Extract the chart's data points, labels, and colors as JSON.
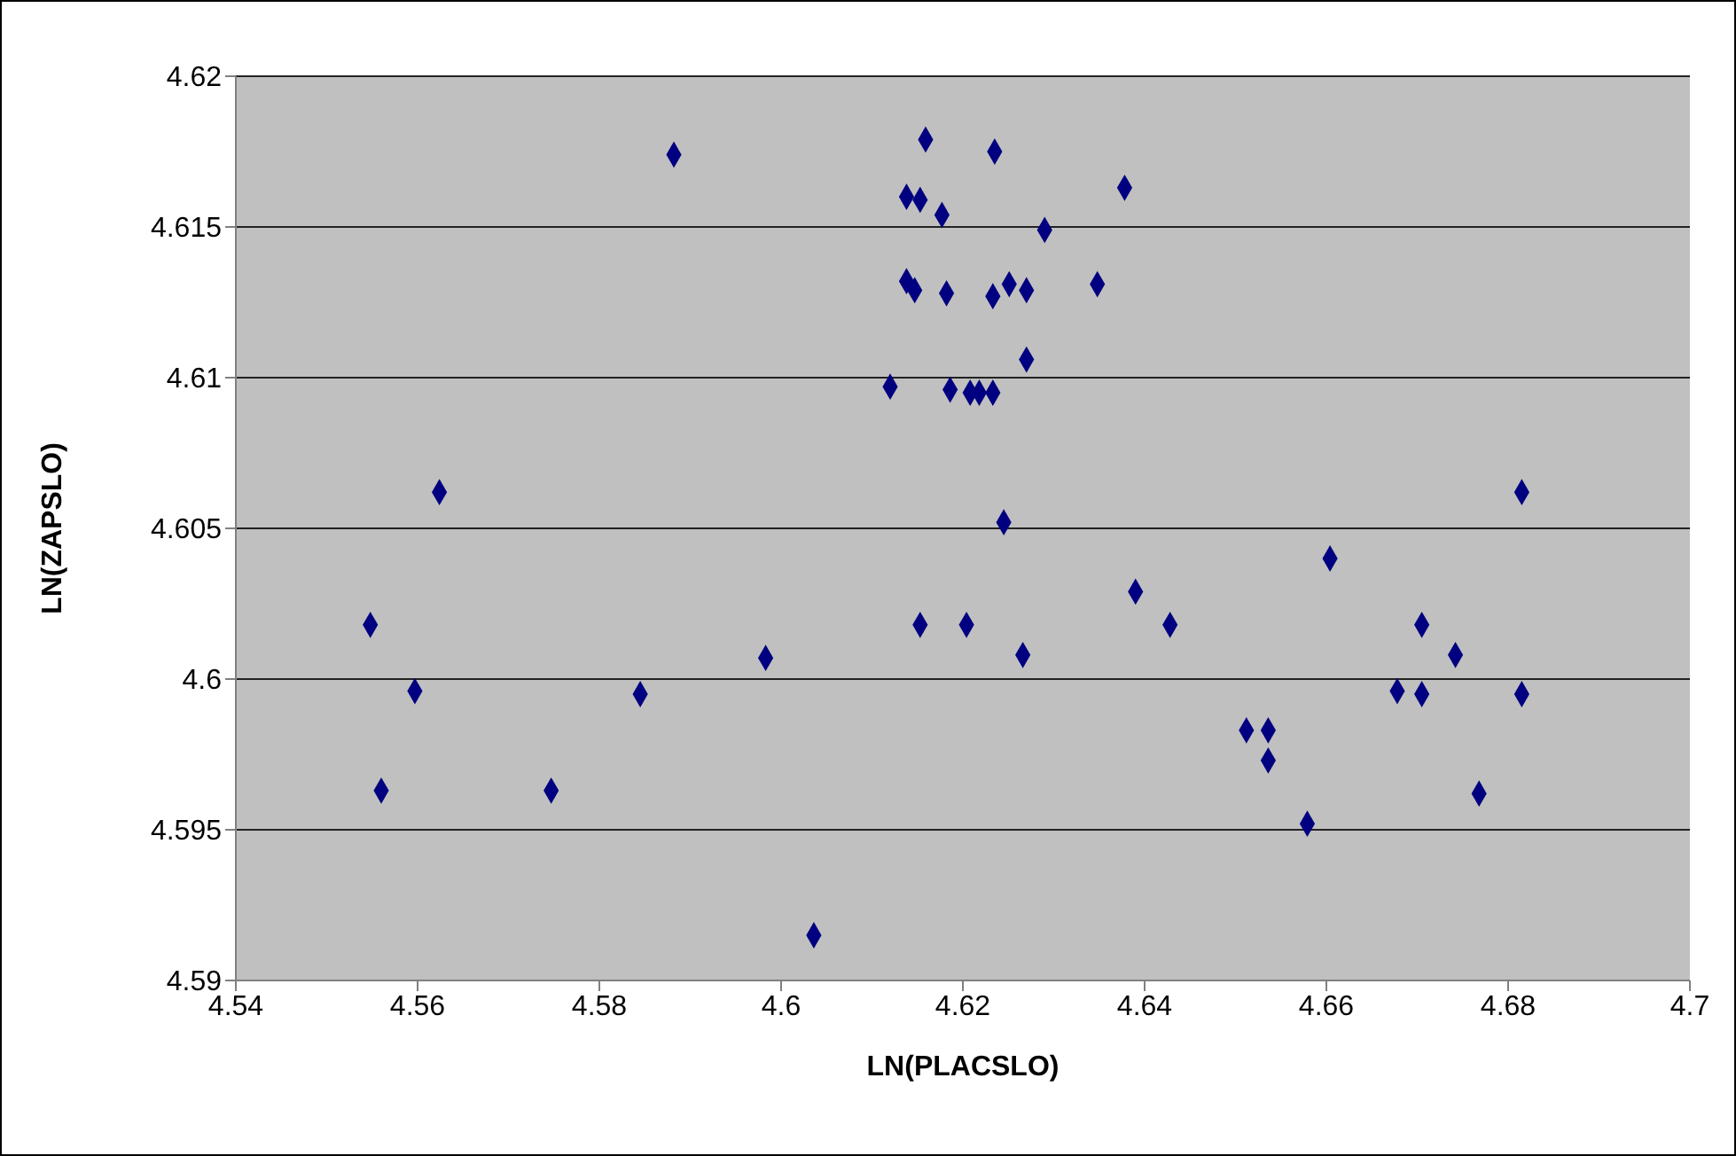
{
  "chart_data": {
    "type": "scatter",
    "xlabel": "LN(PLACSLO)",
    "ylabel": "LN(ZAPSLO)",
    "x": [
      4.5548,
      4.556,
      4.5597,
      4.5624,
      4.5747,
      4.5845,
      4.5882,
      4.5983,
      4.6036,
      4.612,
      4.6138,
      4.6138,
      4.6147,
      4.6153,
      4.6153,
      4.6159,
      4.6177,
      4.6182,
      4.6186,
      4.6204,
      4.6208,
      4.6218,
      4.6233,
      4.6233,
      4.6235,
      4.6245,
      4.6251,
      4.6266,
      4.627,
      4.627,
      4.629,
      4.6348,
      4.6378,
      4.639,
      4.6428,
      4.6512,
      4.6536,
      4.6536,
      4.6579,
      4.6604,
      4.6678,
      4.6705,
      4.6705,
      4.6742,
      4.6768,
      4.6815,
      4.6815
    ],
    "values": [
      4.6018,
      4.5963,
      4.5996,
      4.6062,
      4.5963,
      4.5995,
      4.6174,
      4.6007,
      4.5915,
      4.6097,
      4.616,
      4.6132,
      4.6129,
      4.6159,
      4.6018,
      4.6179,
      4.6154,
      4.6128,
      4.6096,
      4.6018,
      4.6095,
      4.6095,
      4.6095,
      4.6127,
      4.6175,
      4.6052,
      4.6131,
      4.6008,
      4.6129,
      4.6106,
      4.6149,
      4.6131,
      4.6163,
      4.6029,
      4.6018,
      4.5983,
      4.5983,
      4.5973,
      4.5952,
      4.604,
      4.5996,
      4.6018,
      4.5995,
      4.6008,
      4.5962,
      4.6062,
      4.5995
    ],
    "color": "#000080",
    "marker": "diamond",
    "grid": "y",
    "xlim": [
      4.54,
      4.7
    ],
    "xticks": [
      4.54,
      4.56,
      4.58,
      4.6,
      4.62,
      4.64,
      4.66,
      4.68,
      4.7
    ],
    "ylim": [
      4.59,
      4.62
    ],
    "yticks": [
      4.59,
      4.595,
      4.6,
      4.605,
      4.61,
      4.615,
      4.62
    ]
  }
}
